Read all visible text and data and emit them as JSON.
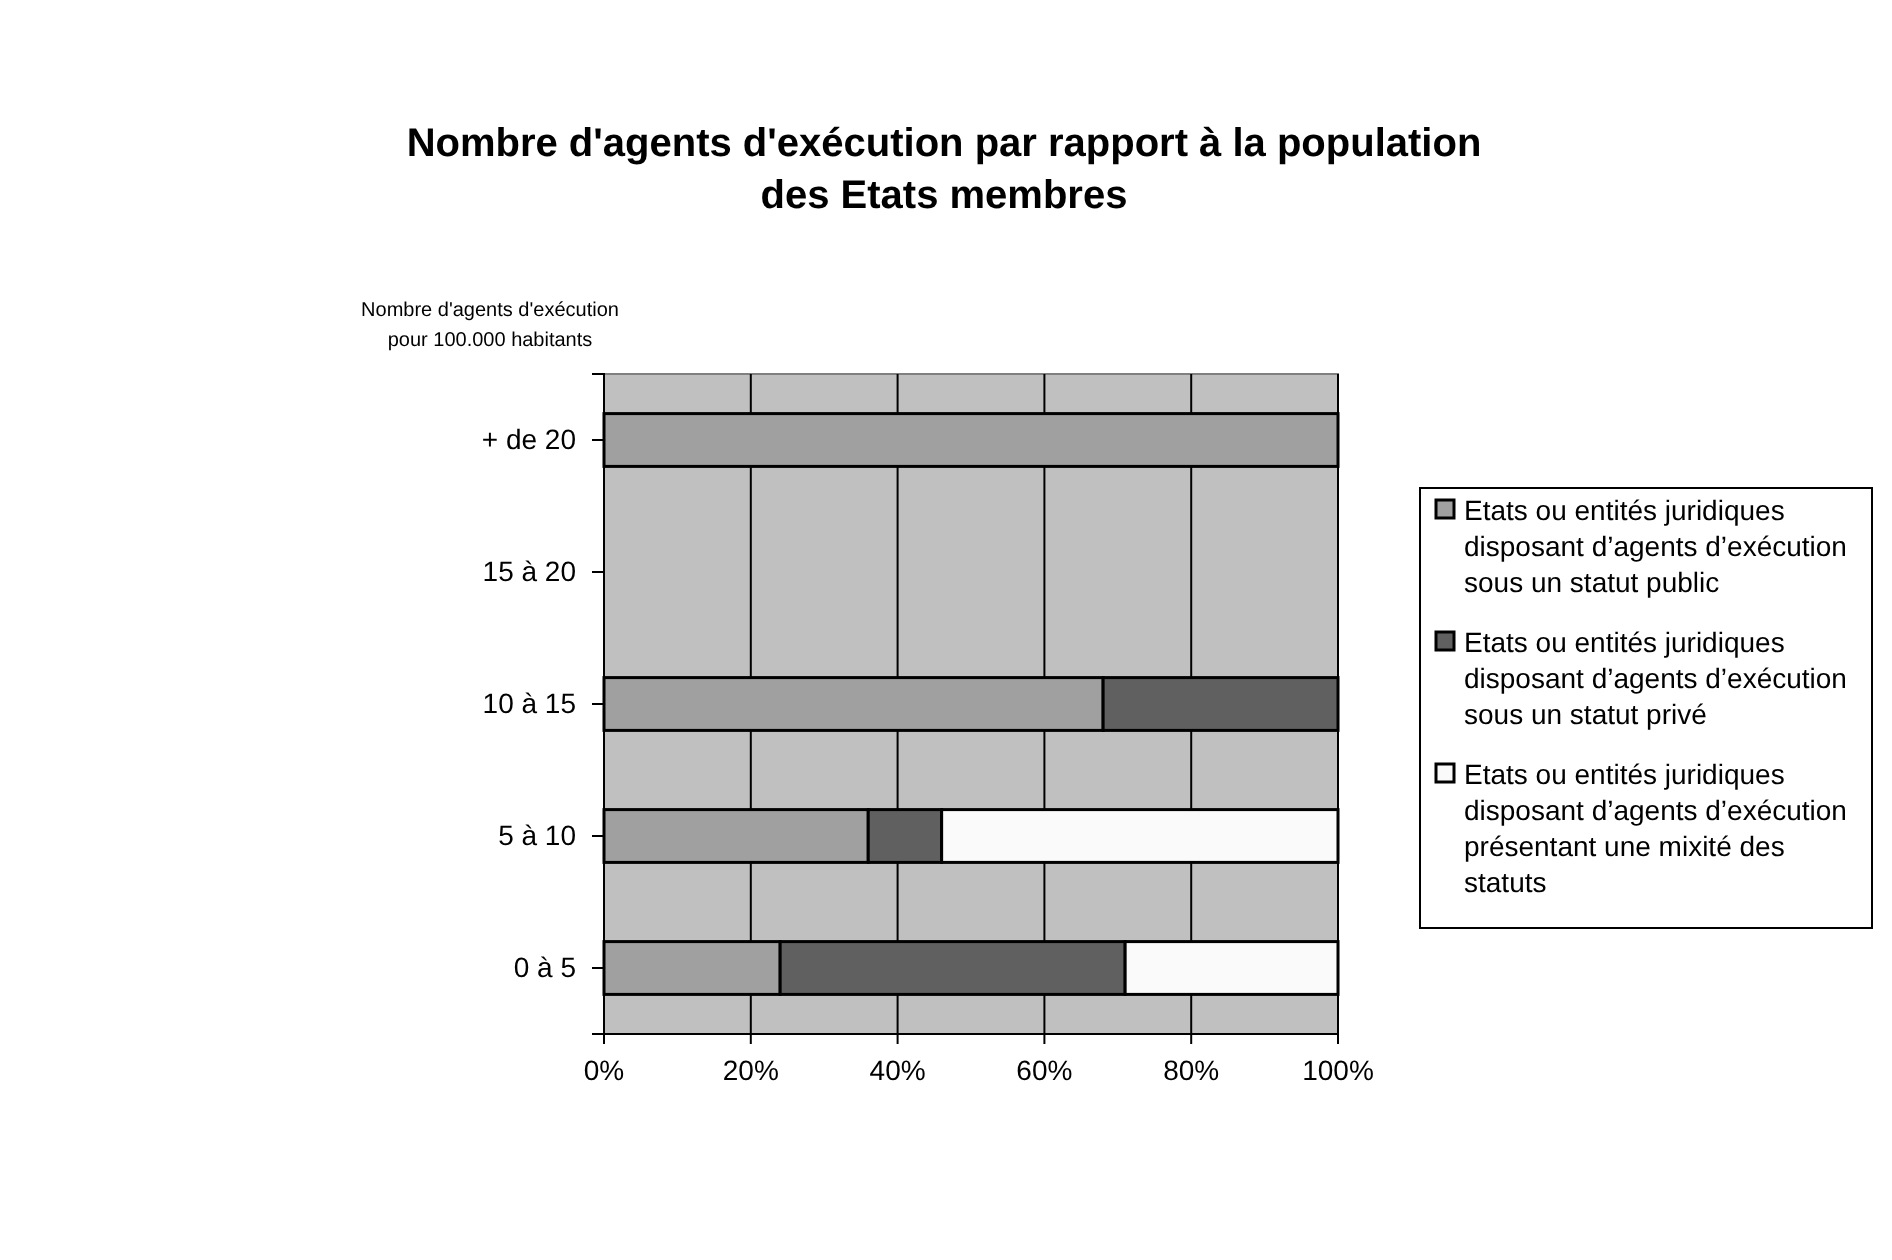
{
  "chart_data": {
    "type": "bar",
    "orientation": "horizontal",
    "stacked": true,
    "title": "Nombre d'agents d'exécution par rapport à la population des Etats membres",
    "ylabel": "Nombre d'agents d'exécution pour 100.000 habitants",
    "categories": [
      "+ de 20",
      "15 à 20",
      "10 à 15",
      "5 à 10",
      "0 à 5"
    ],
    "series": [
      {
        "name": "Etats ou entités juridiques disposant d’agents d’exécution sous un statut public",
        "color": "#a0a0a0",
        "values": [
          100,
          null,
          68,
          36,
          24
        ]
      },
      {
        "name": "Etats ou entités juridiques disposant d’agents d’exécution sous un statut privé",
        "color": "#606060",
        "values": [
          null,
          null,
          32,
          10,
          47
        ]
      },
      {
        "name": "Etats ou entités juridiques disposant d’agents d’exécution présentant une mixité des statuts",
        "color": "#fafafa",
        "values": [
          null,
          null,
          null,
          54,
          29
        ]
      }
    ],
    "xlim": [
      0,
      100
    ],
    "xticks": [
      {
        "value": 0,
        "label": "0%"
      },
      {
        "value": 20,
        "label": "20%"
      },
      {
        "value": 40,
        "label": "40%"
      },
      {
        "value": 60,
        "label": "60%"
      },
      {
        "value": 80,
        "label": "80%"
      },
      {
        "value": 100,
        "label": "100%"
      }
    ],
    "grid": "x",
    "legend": "right"
  }
}
